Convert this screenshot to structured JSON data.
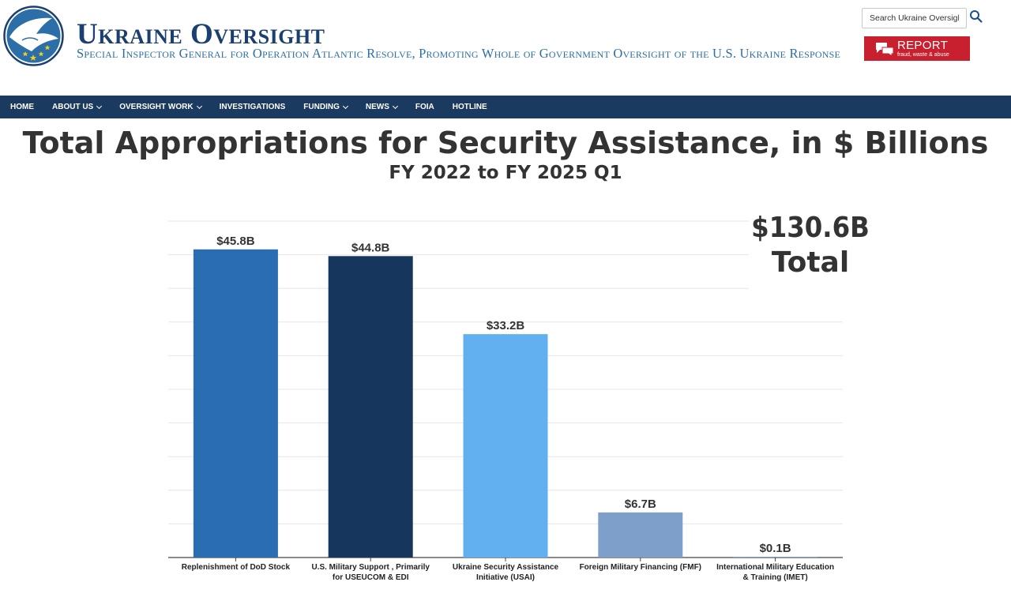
{
  "site": {
    "title": "Ukraine Oversight",
    "subtitle": "Special Inspector General for Operation Atlantic Resolve, Promoting Whole of Government Oversight of the U.S. Ukraine Response"
  },
  "search": {
    "placeholder": "Search Ukraine Oversight"
  },
  "report": {
    "label": "REPORT",
    "sublabel": "fraud, waste & abuse"
  },
  "nav": {
    "items": [
      {
        "label": "HOME",
        "dropdown": false
      },
      {
        "label": "ABOUT US",
        "dropdown": true
      },
      {
        "label": "OVERSIGHT WORK",
        "dropdown": true
      },
      {
        "label": "INVESTIGATIONS",
        "dropdown": false
      },
      {
        "label": "FUNDING",
        "dropdown": true
      },
      {
        "label": "NEWS",
        "dropdown": true
      },
      {
        "label": "FOIA",
        "dropdown": false
      },
      {
        "label": "HOTLINE",
        "dropdown": false
      }
    ]
  },
  "colors": {
    "nav": "#1b3a5f",
    "brand": "#1b3f6e",
    "report": "#c8202f"
  },
  "chart_data": {
    "type": "bar",
    "title": "Total Appropriations for Security Assistance, in $ Billions",
    "subtitle": "FY 2022 to FY 2025 Q1",
    "total_value": "$130.6B",
    "total_label": "Total",
    "categories": [
      "Replenishment of DoD Stock",
      "U.S. Military Support , Primarily for USEUCOM & EDI",
      "Ukraine Security Assistance Initiative (USAI)",
      "Foreign Military Financing (FMF)",
      "International Military Education & Training (IMET)"
    ],
    "category_lines": [
      [
        "Replenishment of DoD Stock"
      ],
      [
        "U.S. Military Support , Primarily",
        "for USEUCOM & EDI"
      ],
      [
        "Ukraine Security Assistance",
        "Initiative (USAI)"
      ],
      [
        "Foreign Military Financing (FMF)"
      ],
      [
        "International Military Education",
        "& Training (IMET)"
      ]
    ],
    "values": [
      45.8,
      44.8,
      33.2,
      6.7,
      0.1
    ],
    "data_labels": [
      "$45.8B",
      "$44.8B",
      "$33.2B",
      "$6.7B",
      "$0.1B"
    ],
    "bar_colors": [
      "#2a6db3",
      "#17365d",
      "#62b0f0",
      "#7f9fcb",
      "#7f9fcb"
    ],
    "ylim": [
      0,
      50
    ],
    "grid": true,
    "legend": "none"
  }
}
